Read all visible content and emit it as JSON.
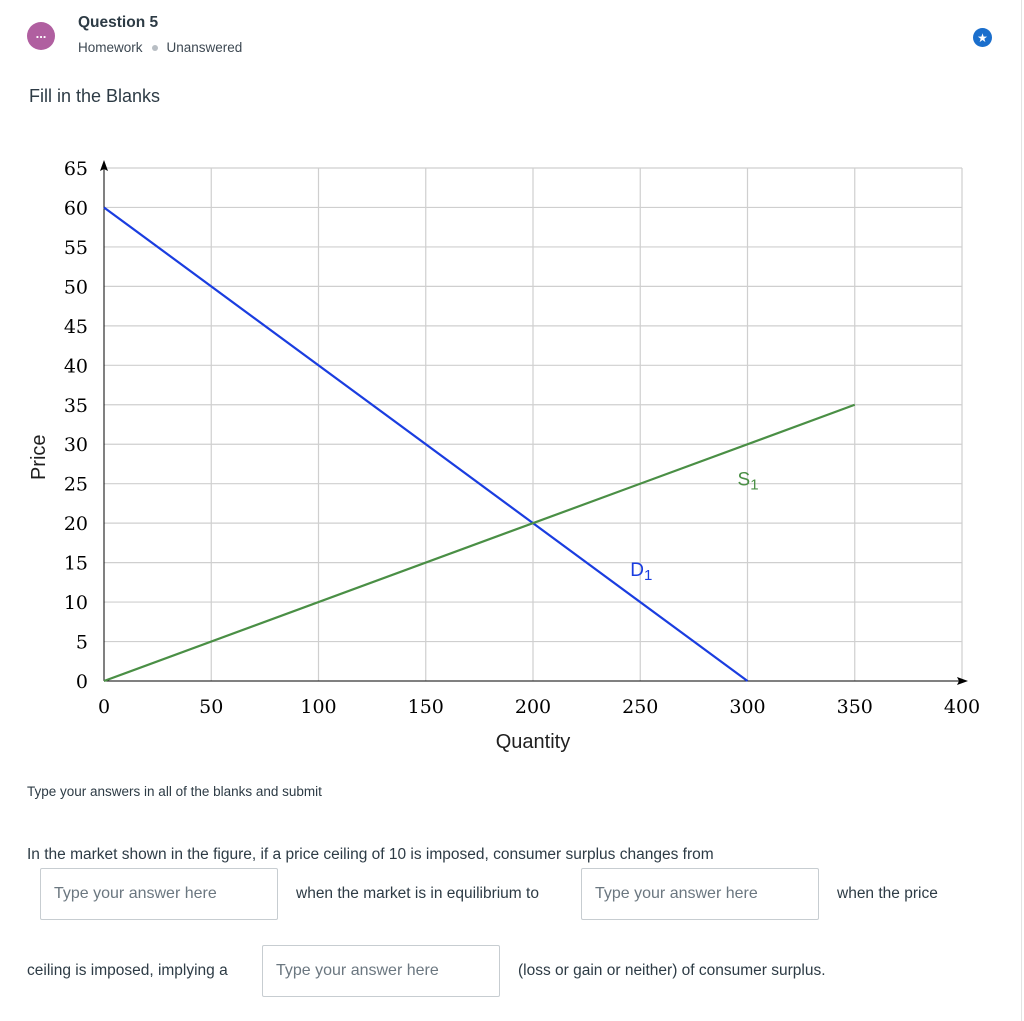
{
  "header": {
    "question_title": "Question 5",
    "type_label": "Homework",
    "status_label": "Unanswered",
    "menu_glyph": "...",
    "star_glyph": "★",
    "menu_icon": "more-dots-icon",
    "star_icon": "star-icon"
  },
  "section_title": "Fill in the Blanks",
  "chart_data": {
    "type": "line",
    "xlabel": "Quantity",
    "ylabel": "Price",
    "xlim": [
      0,
      400
    ],
    "ylim": [
      0,
      65
    ],
    "x_ticks": [
      0,
      50,
      100,
      150,
      200,
      250,
      300,
      350,
      400
    ],
    "y_ticks": [
      0,
      5,
      10,
      15,
      20,
      25,
      30,
      35,
      40,
      45,
      50,
      55,
      60,
      65
    ],
    "grid": true,
    "series": [
      {
        "name": "D1",
        "color": "#1a3de0",
        "points": [
          [
            0,
            60
          ],
          [
            300,
            0
          ]
        ]
      },
      {
        "name": "S1",
        "color": "#4a8f45",
        "points": [
          [
            0,
            0
          ],
          [
            350,
            35
          ]
        ]
      }
    ],
    "series_labels": [
      {
        "base": "D",
        "sub": "1",
        "x": 250,
        "y": 13.3,
        "color": "#1a3de0"
      },
      {
        "base": "S",
        "sub": "1",
        "x": 300,
        "y": 24.8,
        "color": "#4a8f45"
      }
    ]
  },
  "instruction": "Type your answers in all of the blanks and submit",
  "question": {
    "text_1": "In the market shown in the figure, if a price ceiling of 10 is imposed, consumer surplus changes from",
    "text_2": "when the market is in equilibrium to",
    "text_3": "when the price",
    "text_4": "ceiling is imposed, implying a",
    "text_5": "(loss or gain or neither) of consumer surplus.",
    "blank_placeholder": "Type your answer here",
    "blank_1_value": "",
    "blank_2_value": "",
    "blank_3_value": ""
  }
}
